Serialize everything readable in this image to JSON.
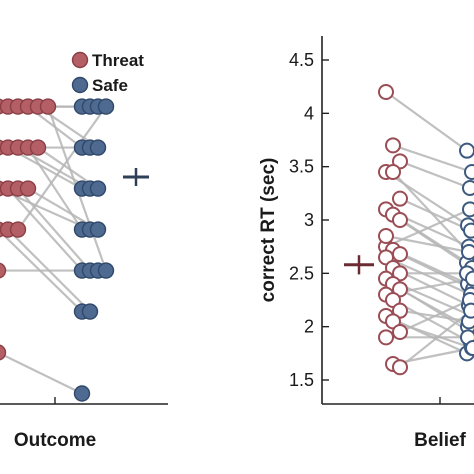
{
  "colors": {
    "threat_fill": "#b45f66",
    "threat_stroke": "#8a3e45",
    "safe_fill": "#4f6a90",
    "safe_stroke": "#2f4768",
    "threat_hollow_stroke": "#9a4d54",
    "safe_hollow_stroke": "#3c5a80",
    "pair_line": "#b5b5b5",
    "axis": "#222222"
  },
  "legend": {
    "items": [
      {
        "label": "Threat",
        "color": "#b45f66"
      },
      {
        "label": "Safe",
        "color": "#4f6a90"
      }
    ],
    "position": "top-right of left panel"
  },
  "chart_data": [
    {
      "type": "scatter",
      "panel": "left",
      "xlabel": "Outcome",
      "ylabel": "",
      "categories": [
        "Threat",
        "Safe"
      ],
      "y_axis_visible": false,
      "series": [
        {
          "name": "Threat",
          "values": [
            7,
            7,
            7,
            7,
            6,
            6,
            6,
            6,
            5,
            5,
            5,
            4,
            4,
            3,
            1,
            7,
            6,
            5,
            4,
            7
          ]
        },
        {
          "name": "Safe",
          "values": [
            7,
            7,
            7,
            6,
            6,
            5,
            5,
            4,
            4,
            3,
            3,
            2,
            2,
            3,
            0,
            6,
            5,
            4,
            7,
            3
          ]
        }
      ],
      "ylim": [
        -0.5,
        8.5
      ],
      "difference_marker": {
        "mean": 6.0,
        "error": 0.3
      }
    },
    {
      "type": "scatter",
      "panel": "right",
      "xlabel": "Belief",
      "ylabel": "correct RT (sec)",
      "yticks": [
        "1.5",
        "2",
        "2.5",
        "3",
        "3.5",
        "4",
        "4.5"
      ],
      "ylim": [
        1.4,
        4.6
      ],
      "categories": [
        "Threat",
        "Safe"
      ],
      "series": [
        {
          "name": "Threat",
          "values": [
            4.2,
            3.7,
            3.55,
            3.45,
            3.45,
            3.2,
            3.1,
            3.05,
            3.0,
            2.75,
            2.72,
            2.68,
            2.65,
            2.55,
            2.5,
            2.45,
            2.4,
            2.35,
            2.3,
            2.25,
            2.15,
            2.1,
            2.05,
            1.95,
            1.9,
            1.65,
            1.62,
            2.85
          ]
        },
        {
          "name": "Safe",
          "values": [
            3.65,
            3.45,
            3.3,
            2.95,
            2.65,
            2.9,
            2.75,
            2.6,
            2.55,
            3.1,
            2.4,
            2.35,
            2.3,
            2.2,
            2.5,
            2.1,
            1.95,
            2.0,
            2.45,
            1.85,
            2.05,
            1.75,
            1.8,
            2.25,
            1.9,
            1.8,
            2.15,
            2.7
          ]
        }
      ],
      "difference_marker": {
        "mean": 2.58,
        "error": 0.09
      }
    }
  ]
}
